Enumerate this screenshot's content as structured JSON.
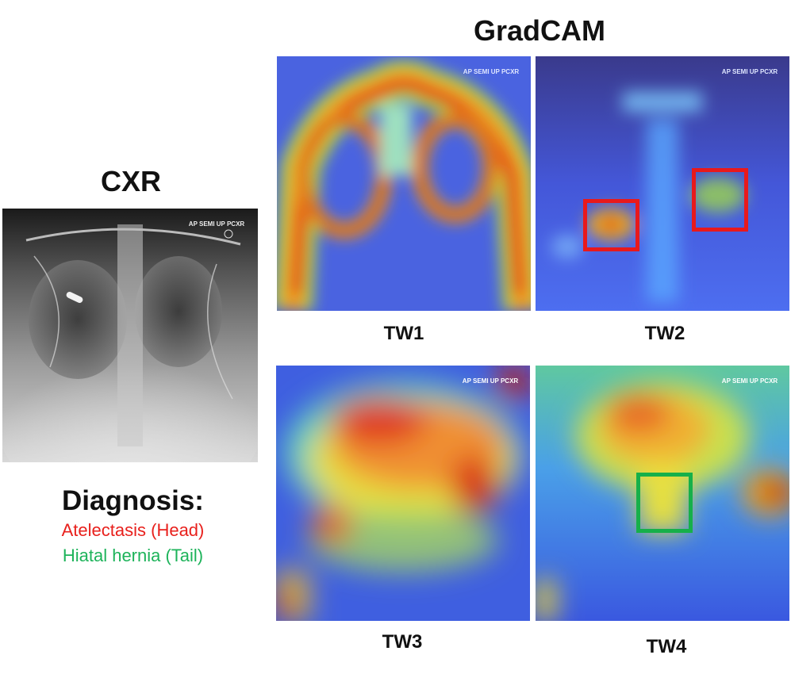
{
  "cxr_title": "CXR",
  "gradcam_title": "GradCAM",
  "panels": [
    {
      "label": "TW1"
    },
    {
      "label": "TW2"
    },
    {
      "label": "TW3"
    },
    {
      "label": "TW4"
    }
  ],
  "watermark": "AP SEMI UP PCXR",
  "diagnosis": {
    "heading": "Diagnosis:",
    "head": {
      "text": "Atelectasis (Head)",
      "color": "#e8201c"
    },
    "tail": {
      "text": "Hiatal hernia (Tail)",
      "color": "#1db35a"
    }
  },
  "colors": {
    "red_box": "#e8191c",
    "green_box": "#16b04a",
    "heat_low": "#3b4fe0",
    "heat_high": "#e8201c"
  }
}
